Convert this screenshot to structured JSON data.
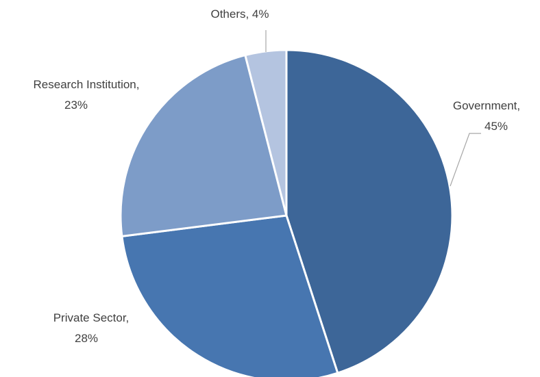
{
  "chart_data": {
    "type": "pie",
    "title": "",
    "categories": [
      "Government",
      "Private Sector",
      "Research Institution",
      "Others"
    ],
    "values": [
      45,
      28,
      23,
      4
    ],
    "value_suffix": "%",
    "start_angle_deg": 0,
    "direction": "clockwise",
    "colors": [
      "#3d6698",
      "#4776b0",
      "#7d9cc8",
      "#b4c4e0"
    ],
    "labels": [
      {
        "name": "Government,",
        "value": "45%"
      },
      {
        "name": "Private Sector,",
        "value": "28%"
      },
      {
        "name": "Research Institution,",
        "value": "23%"
      },
      {
        "name": "Others, 4%",
        "value": ""
      }
    ],
    "legend": "none"
  }
}
